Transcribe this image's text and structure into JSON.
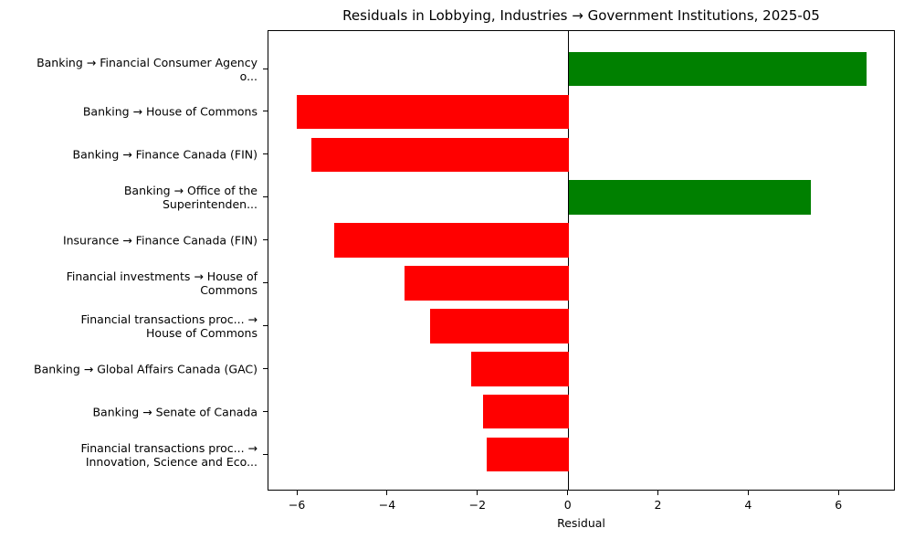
{
  "chart_data": {
    "type": "bar",
    "orientation": "horizontal",
    "title": "Residuals in Lobbying, Industries → Government Institutions, 2025-05",
    "xlabel": "Residual",
    "ylabel": "",
    "xlim": [
      -6.65,
      7.25
    ],
    "xticks": [
      -6,
      -4,
      -2,
      0,
      2,
      4,
      6
    ],
    "xtick_labels": [
      "−6",
      "−4",
      "−2",
      "0",
      "2",
      "4",
      "6"
    ],
    "grid": false,
    "legend": null,
    "zero_line": true,
    "colors": {
      "positive": "#008000",
      "negative": "#ff0000"
    },
    "categories": [
      "Banking → Financial Consumer Agency\no...",
      "Banking → House of Commons",
      "Banking → Finance Canada (FIN)",
      "Banking → Office of the\nSuperintenden...",
      "Insurance → Finance Canada (FIN)",
      "Financial investments → House of\nCommons",
      "Financial transactions proc... →\nHouse of Commons",
      "Banking → Global Affairs Canada (GAC)",
      "Banking → Senate of Canada",
      "Financial transactions proc... →\nInnovation, Science and Eco..."
    ],
    "values": [
      6.61,
      -6.02,
      -5.7,
      5.37,
      -5.19,
      -3.64,
      -3.07,
      -2.16,
      -1.9,
      -1.82
    ]
  }
}
